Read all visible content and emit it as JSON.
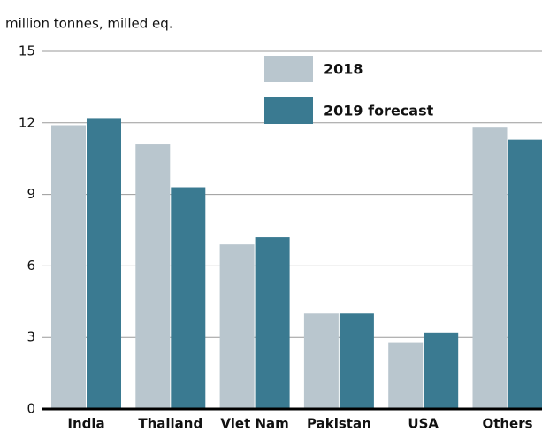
{
  "chart_data": {
    "type": "bar",
    "y_label": "million tonnes, milled eq.",
    "categories": [
      "India",
      "Thailand",
      "Viet Nam",
      "Pakistan",
      "USA",
      "Others"
    ],
    "series": [
      {
        "name": "2018",
        "color": "#b9c6ce",
        "values": [
          11.9,
          11.1,
          6.9,
          4.0,
          2.8,
          11.8
        ]
      },
      {
        "name": "2019 forecast",
        "color": "#3a7a91",
        "values": [
          12.2,
          9.3,
          7.2,
          4.0,
          3.2,
          11.3
        ]
      }
    ],
    "ylim": [
      0,
      15
    ],
    "yticks": [
      0,
      3,
      6,
      9,
      12,
      15
    ],
    "grid": true,
    "legend": "top"
  }
}
